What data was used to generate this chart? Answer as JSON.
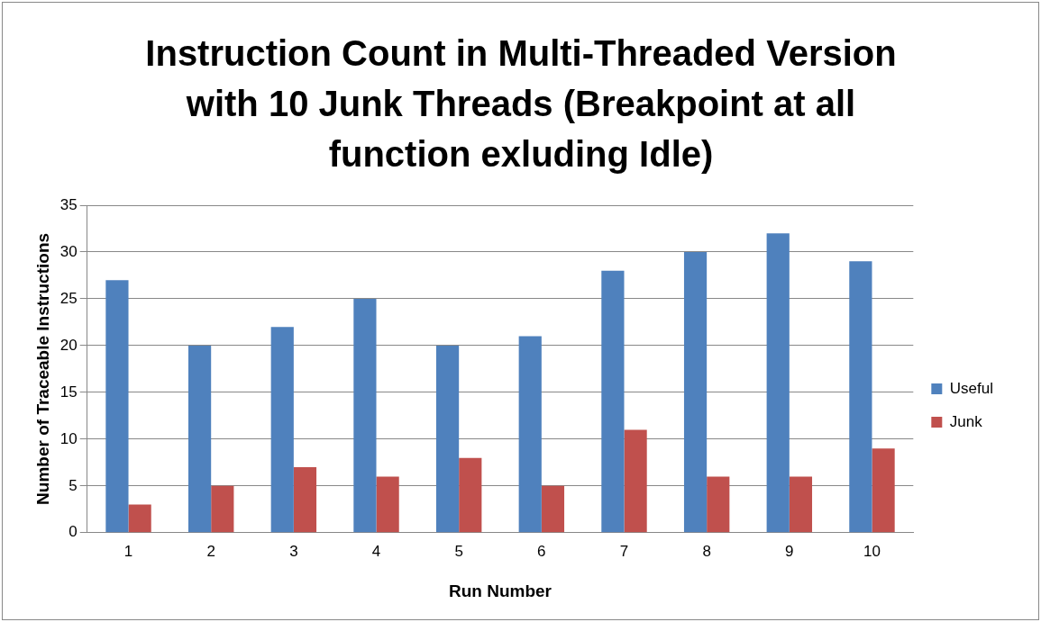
{
  "chart_data": {
    "type": "bar",
    "title": "Instruction Count in Multi-Threaded Version with 10 Junk Threads (Breakpoint at all function exluding Idle)",
    "xlabel": "Run Number",
    "ylabel": "Number of Traceable Instructions",
    "categories": [
      "1",
      "2",
      "3",
      "4",
      "5",
      "6",
      "7",
      "8",
      "9",
      "10"
    ],
    "series": [
      {
        "name": "Useful",
        "color": "#4f81bd",
        "values": [
          27,
          20,
          22,
          25,
          20,
          21,
          28,
          30,
          32,
          29
        ]
      },
      {
        "name": "Junk",
        "color": "#c0504d",
        "values": [
          3,
          5,
          7,
          6,
          8,
          5,
          11,
          6,
          6,
          9
        ]
      }
    ],
    "ylim": [
      0,
      35
    ],
    "yticks": [
      0,
      5,
      10,
      15,
      20,
      25,
      30,
      35
    ],
    "grid": "y",
    "legend": "right"
  }
}
